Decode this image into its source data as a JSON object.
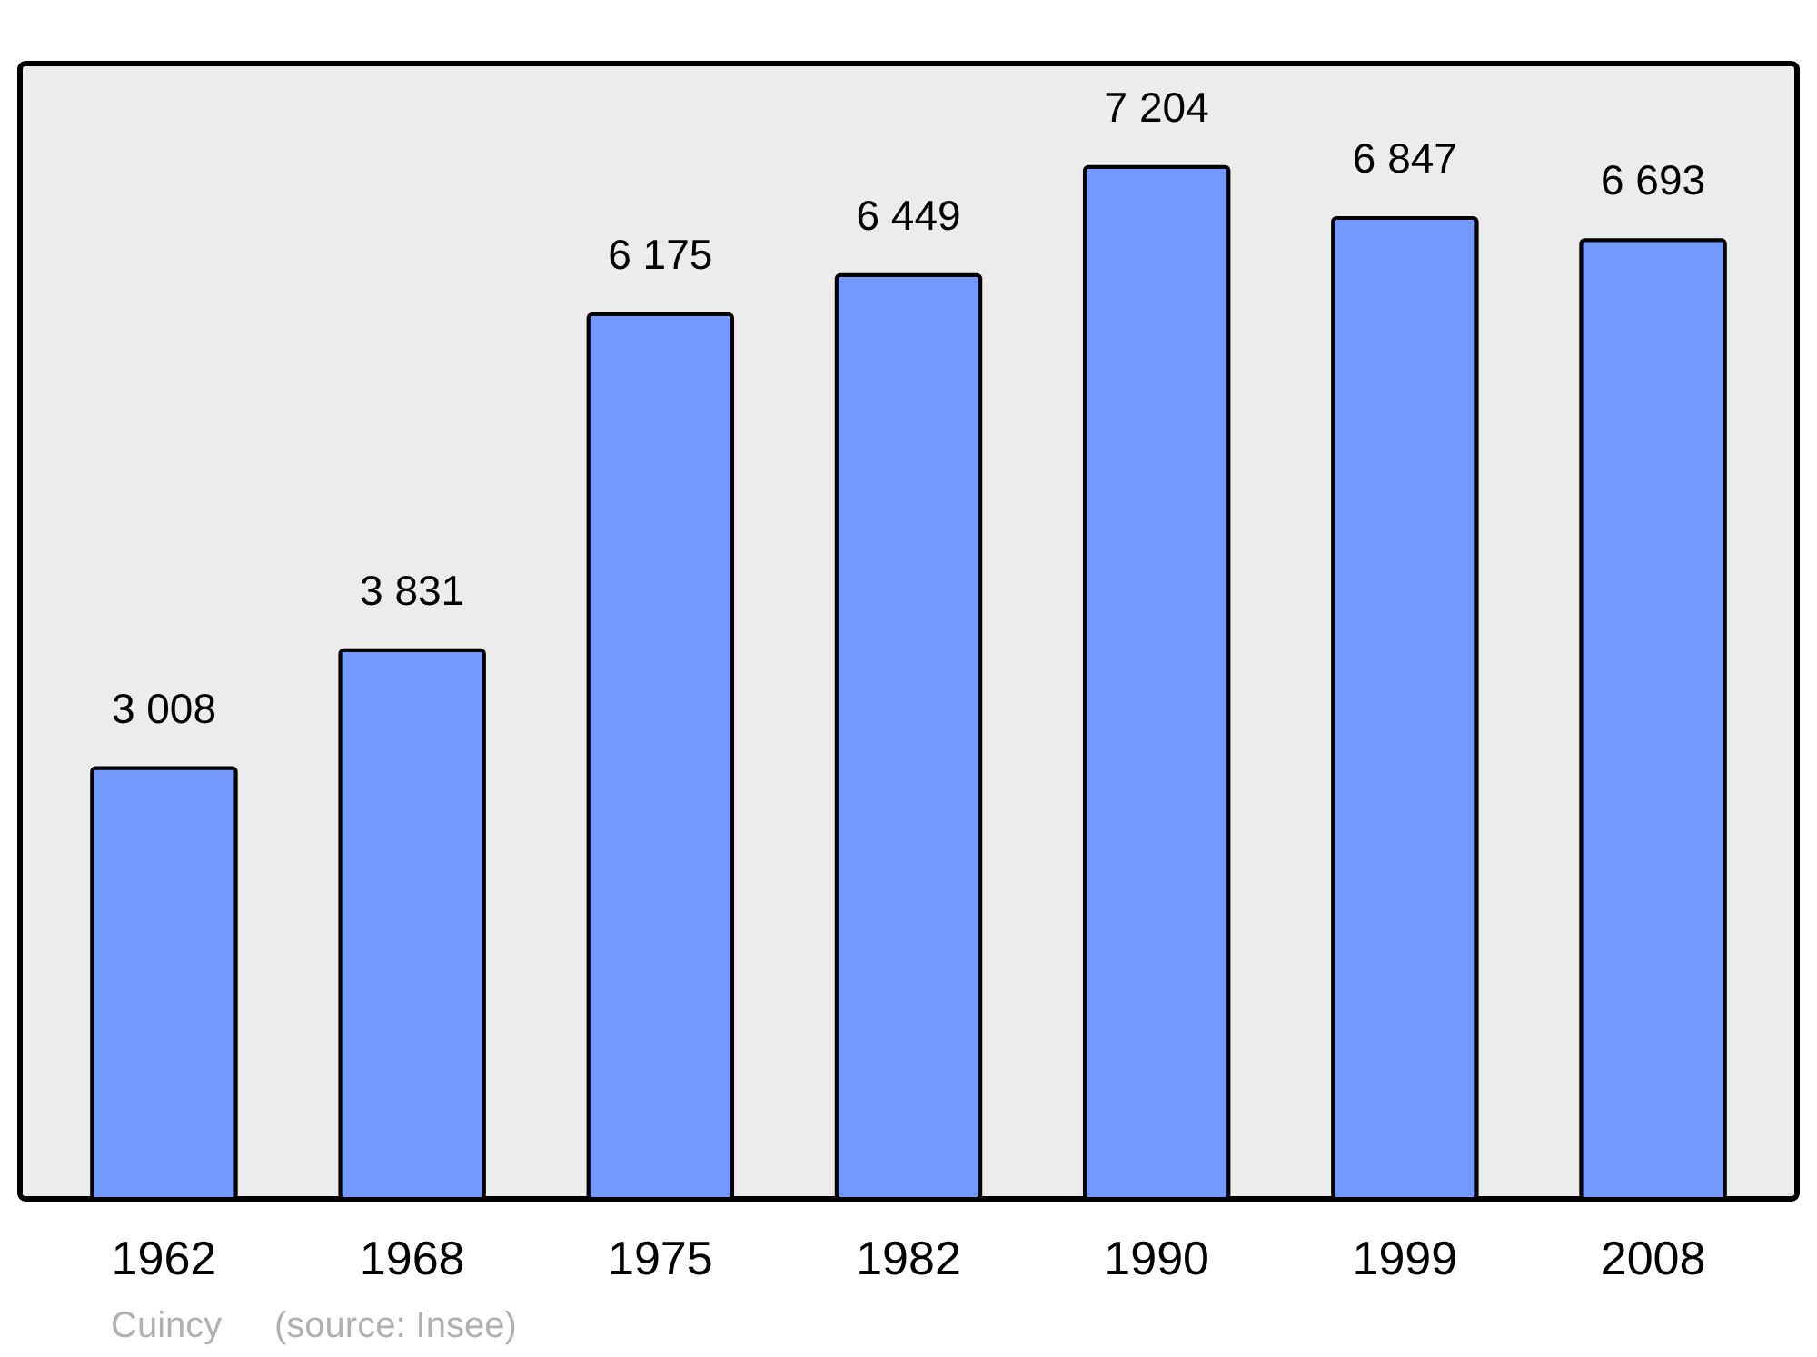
{
  "chart_data": {
    "type": "bar",
    "categories": [
      "1962",
      "1968",
      "1975",
      "1982",
      "1990",
      "1999",
      "2008"
    ],
    "values": [
      3008,
      3831,
      6175,
      6449,
      7204,
      6847,
      6693
    ],
    "value_labels": [
      "3 008",
      "3 831",
      "6 175",
      "6 449",
      "7 204",
      "6 847",
      "6 693"
    ],
    "color": "#7499ff",
    "grid": false,
    "annotations": [
      "Cuincy",
      "(source: Insee)"
    ]
  }
}
